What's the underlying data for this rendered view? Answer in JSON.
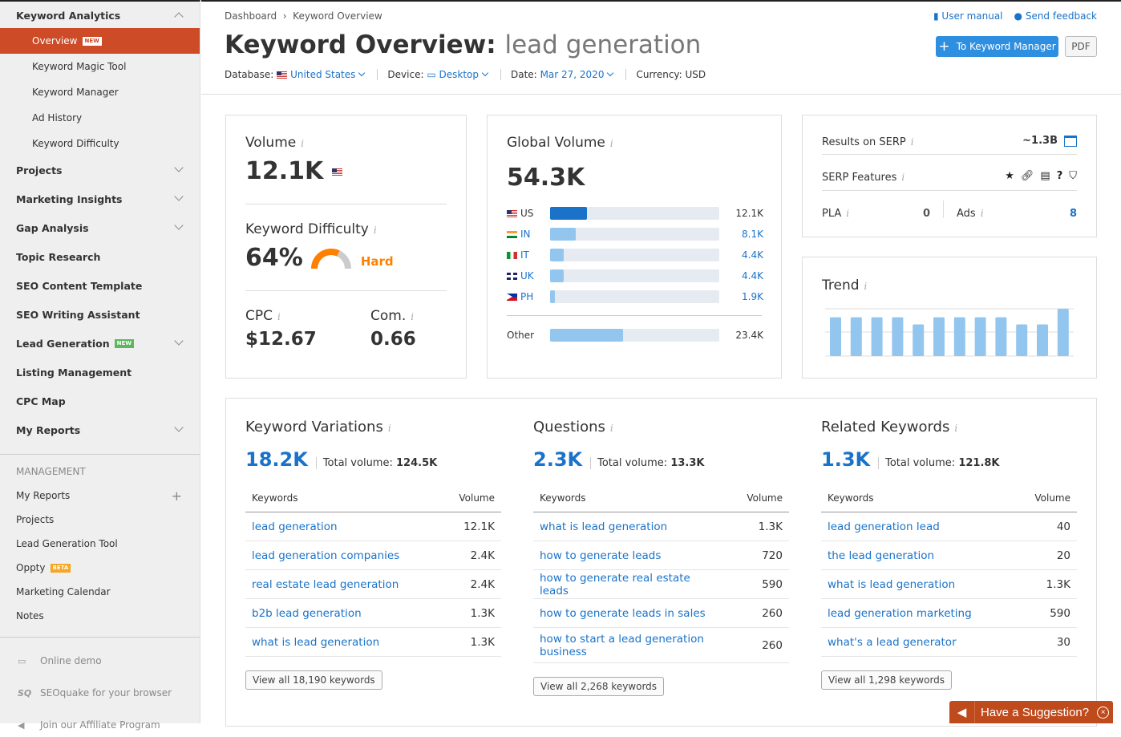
{
  "sidebar": {
    "section": "Keyword Analytics",
    "sub_items": [
      {
        "label": "Overview",
        "badge": "NEW",
        "active": true
      },
      {
        "label": "Keyword Magic Tool"
      },
      {
        "label": "Keyword Manager"
      },
      {
        "label": "Ad History"
      },
      {
        "label": "Keyword Difficulty"
      }
    ],
    "items": [
      {
        "label": "Projects",
        "expand": true
      },
      {
        "label": "Marketing Insights",
        "expand": true
      },
      {
        "label": "Gap Analysis",
        "expand": true
      },
      {
        "label": "Topic Research"
      },
      {
        "label": "SEO Content Template"
      },
      {
        "label": "SEO Writing Assistant"
      },
      {
        "label": "Lead Generation",
        "badge": "NEW",
        "expand": true
      },
      {
        "label": "Listing Management"
      },
      {
        "label": "CPC Map"
      },
      {
        "label": "My Reports",
        "expand": true
      }
    ],
    "management_heading": "MANAGEMENT",
    "management": [
      {
        "label": "My Reports",
        "plus": true
      },
      {
        "label": "Projects"
      },
      {
        "label": "Lead Generation Tool"
      },
      {
        "label": "Oppty",
        "badge": "BETA"
      },
      {
        "label": "Marketing Calendar"
      },
      {
        "label": "Notes"
      }
    ],
    "footer": [
      {
        "label": "Online demo",
        "icon": "monitor-icon"
      },
      {
        "label": "SEOquake for your browser",
        "icon": "seoquake-icon",
        "icon_text": "SQ"
      },
      {
        "label": "Join our Affiliate Program",
        "icon": "megaphone-icon"
      }
    ]
  },
  "header": {
    "breadcrumb": [
      "Dashboard",
      "Keyword Overview"
    ],
    "title_prefix": "Keyword Overview:",
    "keyword": "lead generation",
    "database_label": "Database:",
    "database": "United States",
    "device_label": "Device:",
    "device": "Desktop",
    "date_label": "Date:",
    "date": "Mar 27, 2020",
    "currency": "Currency: USD",
    "user_manual": "User manual",
    "send_feedback": "Send feedback",
    "to_keyword_manager": "To Keyword Manager",
    "pdf": "PDF"
  },
  "volume": {
    "label": "Volume",
    "value": "12.1K",
    "kd_label": "Keyword Difficulty",
    "kd_value": "64%",
    "kd_percent": 64,
    "kd_level": "Hard",
    "cpc_label": "CPC",
    "cpc": "$12.67",
    "com_label": "Com.",
    "com": "0.66"
  },
  "global_volume": {
    "label": "Global Volume",
    "value": "54.3K",
    "countries": [
      {
        "code": "US",
        "value": "12.1K",
        "share": 0.22,
        "flag": "us"
      },
      {
        "code": "IN",
        "value": "8.1K",
        "share": 0.15,
        "flag": "in"
      },
      {
        "code": "IT",
        "value": "4.4K",
        "share": 0.08,
        "flag": "it-f"
      },
      {
        "code": "UK",
        "value": "4.4K",
        "share": 0.08,
        "flag": "uk"
      },
      {
        "code": "PH",
        "value": "1.9K",
        "share": 0.03,
        "flag": "ph"
      }
    ],
    "other_label": "Other",
    "other_value": "23.4K",
    "other_share": 0.43
  },
  "serp": {
    "results_label": "Results on SERP",
    "results": "~1.3B",
    "features_label": "SERP Features",
    "features": [
      "star-icon",
      "link-icon",
      "news-icon",
      "question-icon",
      "graduation-cap-icon"
    ],
    "pla_label": "PLA",
    "pla": "0",
    "ads_label": "Ads",
    "ads": "8"
  },
  "trend": {
    "label": "Trend",
    "values": [
      0.82,
      0.82,
      0.82,
      0.82,
      0.67,
      0.82,
      0.82,
      0.82,
      0.82,
      0.67,
      0.67,
      1.0
    ]
  },
  "panels": [
    {
      "title": "Keyword Variations",
      "count": "18.2K",
      "total_label": "Total volume:",
      "total": "124.5K",
      "col_kw": "Keywords",
      "col_vol": "Volume",
      "rows": [
        [
          "lead generation",
          "12.1K"
        ],
        [
          "lead generation companies",
          "2.4K"
        ],
        [
          "real estate lead generation",
          "2.4K"
        ],
        [
          "b2b lead generation",
          "1.3K"
        ],
        [
          "what is lead generation",
          "1.3K"
        ]
      ],
      "view_all": "View all 18,190 keywords"
    },
    {
      "title": "Questions",
      "count": "2.3K",
      "total_label": "Total volume:",
      "total": "13.3K",
      "col_kw": "Keywords",
      "col_vol": "Volume",
      "rows": [
        [
          "what is lead generation",
          "1.3K"
        ],
        [
          "how to generate leads",
          "720"
        ],
        [
          "how to generate real estate leads",
          "590"
        ],
        [
          "how to generate leads in sales",
          "260"
        ],
        [
          "how to start a lead generation business",
          "260"
        ]
      ],
      "view_all": "View all 2,268 keywords"
    },
    {
      "title": "Related Keywords",
      "count": "1.3K",
      "total_label": "Total volume:",
      "total": "121.8K",
      "col_kw": "Keywords",
      "col_vol": "Volume",
      "rows": [
        [
          "lead generation lead",
          "40"
        ],
        [
          "the lead generation",
          "20"
        ],
        [
          "what is lead generation",
          "1.3K"
        ],
        [
          "lead generation marketing",
          "590"
        ],
        [
          "what's a lead generator",
          "30"
        ]
      ],
      "view_all": "View all 1,298 keywords"
    }
  ],
  "suggestion": "Have a Suggestion?",
  "colors": {
    "accent": "#cd4b27",
    "link": "#1a73c9",
    "primary_button": "#2e8fe0",
    "bar": "#93c6ef",
    "bar_dark": "#1a73c9",
    "hard": "#ff8000"
  }
}
